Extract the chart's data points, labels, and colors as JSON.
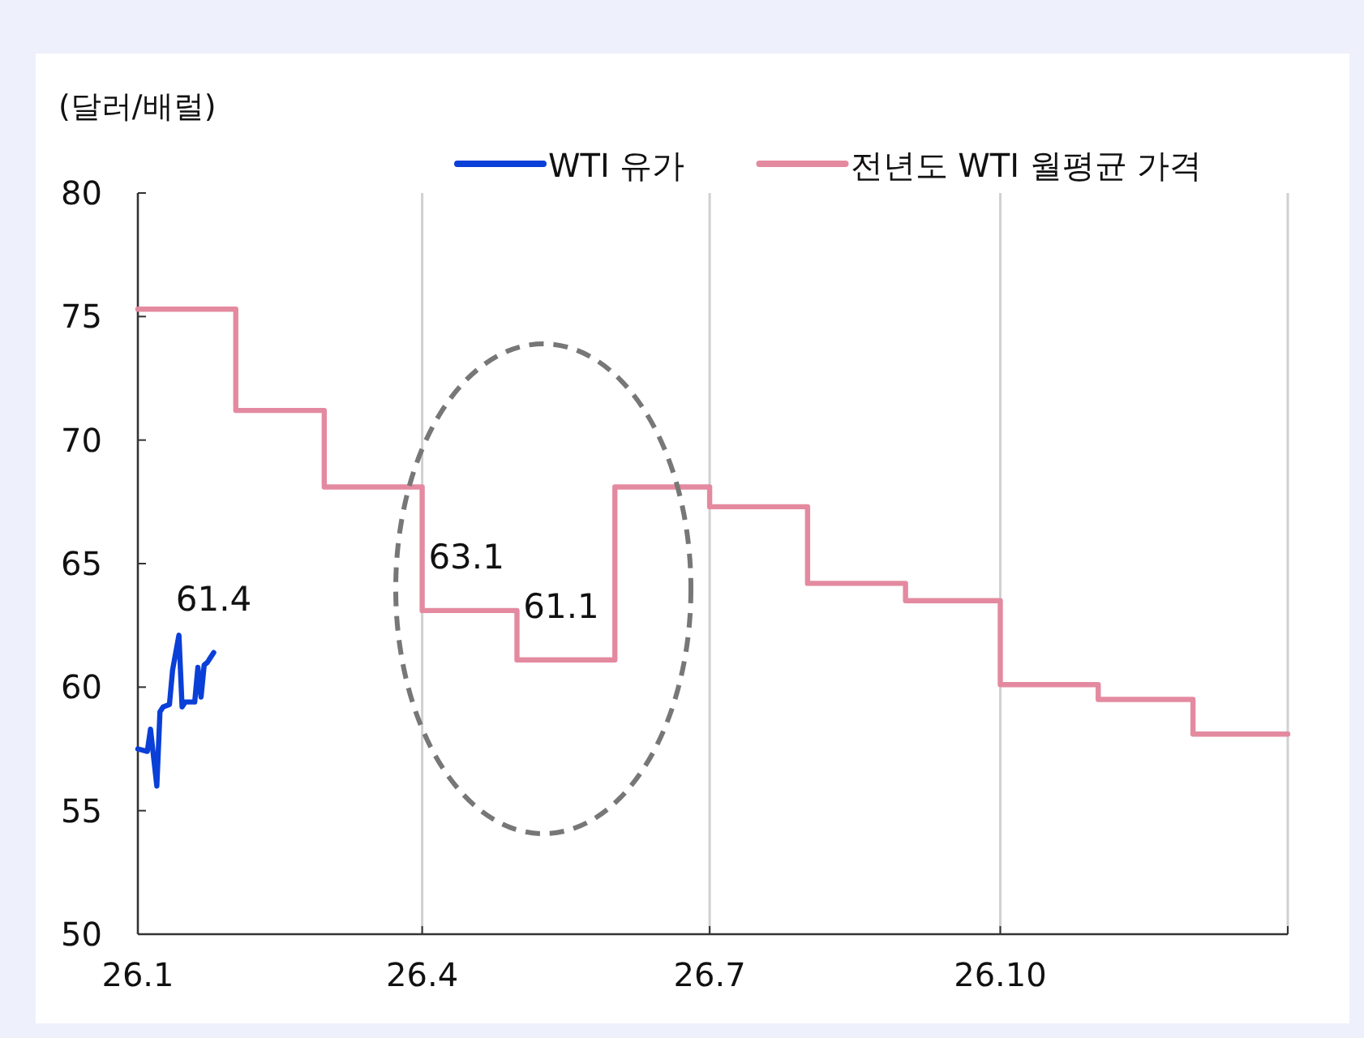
{
  "chart_data": {
    "type": "line",
    "ylabel": "(달러/배럴)",
    "series": [
      {
        "name": "WTI 유가",
        "color": "#0a3fd8",
        "x": [
          "--01-01",
          "--01-04",
          "--01-05",
          "--01-07",
          "--01-08",
          "--01-09",
          "--01-11",
          "--01-12",
          "--01-14",
          "--01-15",
          "--01-16",
          "--01-19",
          "--01-20",
          "--01-21",
          "--01-22",
          "--01-23",
          "--01-25"
        ],
        "values": [
          57.5,
          57.4,
          58.3,
          56.0,
          59.0,
          59.2,
          59.3,
          60.7,
          62.1,
          59.2,
          59.4,
          59.4,
          60.8,
          59.6,
          60.9,
          61.0,
          61.4
        ]
      },
      {
        "name": "전년도 WTI 월평균 가격",
        "type": "step",
        "color": "#e48aa0",
        "x": [
          "--01-01",
          "--02-01",
          "--03-01",
          "--04-01",
          "--05-01",
          "--06-01",
          "--07-01",
          "--08-01",
          "--09-01",
          "--10-01",
          "--11-01",
          "--12-01",
          "--12-31"
        ],
        "values": [
          75.3,
          71.2,
          68.1,
          63.1,
          61.1,
          68.1,
          67.3,
          64.2,
          63.5,
          60.1,
          59.5,
          58.1,
          58.1
        ]
      }
    ],
    "annotations": [
      {
        "text": "61.4",
        "x": "--01-25",
        "y": 61.4
      },
      {
        "text": "63.1",
        "x": "--04-15",
        "y": 63.1
      },
      {
        "text": "61.1",
        "x": "--05-15",
        "y": 61.1
      }
    ],
    "xlim": [
      "--01-01",
      "--12-31"
    ],
    "xticks": [
      {
        "value": "--01-01",
        "label": "26.1"
      },
      {
        "value": "--04-01",
        "label": "26.4"
      },
      {
        "value": "--07-01",
        "label": "26.7"
      },
      {
        "value": "--10-01",
        "label": "26.10"
      },
      {
        "value": "--12-31",
        "label": null
      }
    ],
    "ylim": [
      50,
      80
    ],
    "yticks": [
      50,
      55,
      60,
      65,
      70,
      75,
      80
    ],
    "grid": "x",
    "legend": "top right",
    "line_style": "solid",
    "marker": "none"
  }
}
